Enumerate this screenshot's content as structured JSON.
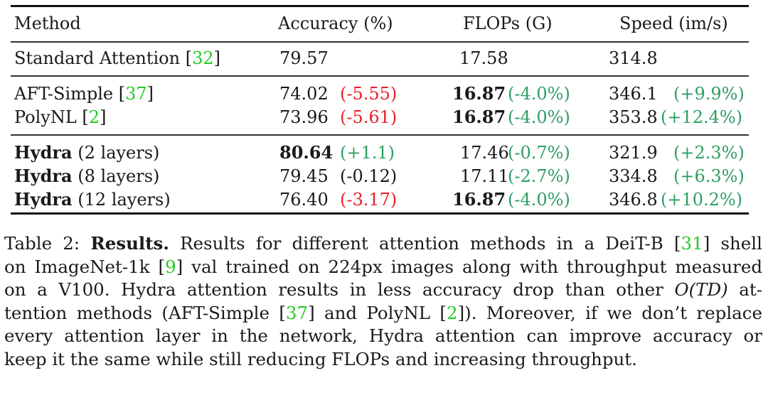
{
  "table": {
    "headers": [
      "Method",
      "Accuracy (%)",
      "FLOPs (G)",
      "Speed (im/s)"
    ],
    "rows": [
      {
        "method": "Standard Attention",
        "method_bold": "",
        "cite": "32",
        "acc": "79.57",
        "acc_delta": "",
        "flops": "17.58",
        "flops_delta": "",
        "speed": "314.8",
        "speed_delta": ""
      },
      {
        "method": "AFT-Simple",
        "method_bold": "",
        "cite": "37",
        "acc": "74.02",
        "acc_delta": "(-5.55)",
        "flops": "16.87",
        "flops_delta": "(-4.0%)",
        "speed": "346.1",
        "speed_delta": "(+9.9%)"
      },
      {
        "method": "PolyNL",
        "method_bold": "",
        "cite": "2",
        "acc": "73.96",
        "acc_delta": "(-5.61)",
        "flops": "16.87",
        "flops_delta": "(-4.0%)",
        "speed": "353.8",
        "speed_delta": "(+12.4%)"
      },
      {
        "method": "(2 layers)",
        "method_bold": "Hydra",
        "cite": "",
        "acc": "80.64",
        "acc_delta": "(+1.1)",
        "flops": "17.46",
        "flops_delta": "(-0.7%)",
        "speed": "321.9",
        "speed_delta": "(+2.3%)"
      },
      {
        "method": "(8 layers)",
        "method_bold": "Hydra",
        "cite": "",
        "acc": "79.45",
        "acc_delta": "(-0.12)",
        "flops": "17.11",
        "flops_delta": "(-2.7%)",
        "speed": "334.8",
        "speed_delta": "(+6.3%)"
      },
      {
        "method": "(12 layers)",
        "method_bold": "Hydra",
        "cite": "",
        "acc": "76.40",
        "acc_delta": "(-3.17)",
        "flops": "16.87",
        "flops_delta": "(-4.0%)",
        "speed": "346.8",
        "speed_delta": "(+10.2%)"
      }
    ]
  },
  "caption": {
    "label": "Table 2:",
    "title": "Results.",
    "l1a": "Results for different attention methods in a DeiT-B [",
    "c31": "31",
    "l1b": "] shell",
    "l2a": "on ImageNet-1k [",
    "c9": "9",
    "l2b": "] val trained on 224px images along with throughput measured",
    "l3a": "on a V100. Hydra attention results in less accuracy drop than other ",
    "l3m": "O(TD)",
    "l3b": " at-",
    "l4a": "tention methods (AFT-Simple [",
    "c37": "37",
    "l4b": "] and PolyNL [",
    "c2": "2",
    "l4c": "]). Moreover, if we don’t replace",
    "l5": "every attention layer in the network, Hydra attention can improve accuracy or",
    "l6": "keep it the same while still reducing FLOPs and increasing throughput."
  },
  "colors": {
    "negative": "#e8202a",
    "positive": "#2e9e62",
    "citation": "#22cc22"
  }
}
